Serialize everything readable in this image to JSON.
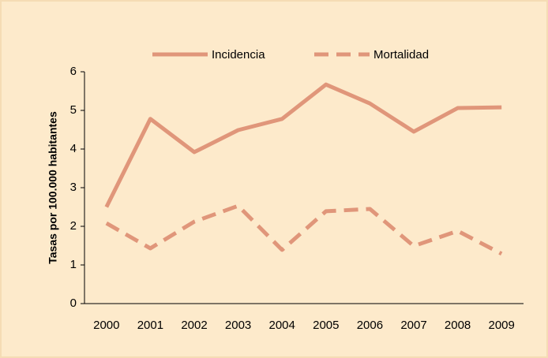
{
  "chart_data": {
    "type": "line",
    "y_label": "Tasas por 100.000 habitantes",
    "categories": [
      "2000",
      "2001",
      "2002",
      "2003",
      "2004",
      "2005",
      "2006",
      "2007",
      "2008",
      "2009"
    ],
    "series": [
      {
        "name": "Incidencia",
        "color": "#e0967a",
        "dash": "solid",
        "values": [
          2.5,
          4.78,
          3.92,
          4.49,
          4.78,
          5.67,
          5.18,
          4.45,
          5.06,
          5.08
        ]
      },
      {
        "name": "Mortalidad",
        "color": "#e0967a",
        "dash": "dashed",
        "values": [
          2.08,
          1.43,
          2.12,
          2.53,
          1.39,
          2.39,
          2.45,
          1.49,
          1.88,
          1.29
        ]
      }
    ],
    "ylim": [
      0,
      6
    ],
    "yticks": [
      0,
      1,
      2,
      3,
      4,
      5,
      6
    ],
    "grid": false,
    "legend": "top"
  }
}
